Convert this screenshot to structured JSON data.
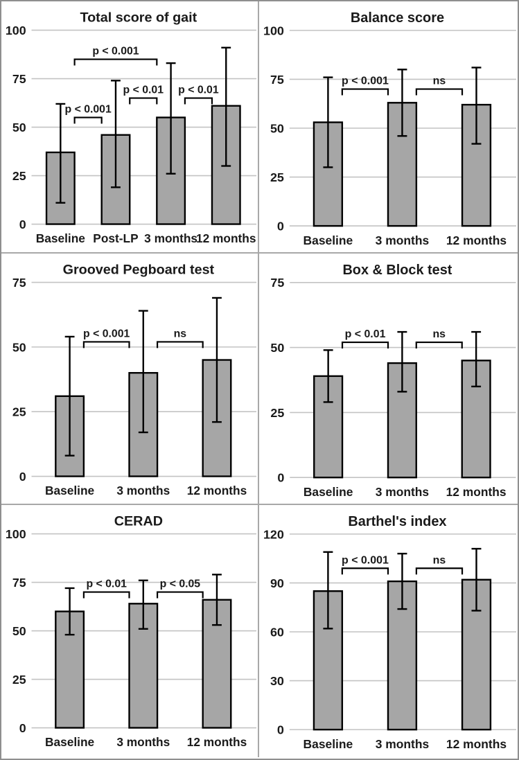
{
  "style": {
    "background": "#ffffff",
    "bar_fill": "#a6a6a6",
    "bar_border": "#000000",
    "grid_color": "#c3c3c3",
    "panel_divider": "#a8a8a8",
    "outer_border": "#8f8f8f",
    "text_color": "#1a1a1a"
  },
  "chart_data": [
    {
      "type": "bar",
      "title": "Total score of gait",
      "categories": [
        "Baseline",
        "Post-LP",
        "3 months",
        "12 months"
      ],
      "values": [
        37,
        46,
        55,
        61
      ],
      "error_low": [
        11,
        19,
        26,
        30
      ],
      "error_high": [
        62,
        74,
        83,
        91
      ],
      "xlabel": "",
      "ylabel": "",
      "ylim": [
        0,
        100
      ],
      "yticks": [
        0,
        25,
        50,
        75,
        100
      ],
      "grid": true,
      "legend": "none",
      "significance": [
        {
          "pair": [
            0,
            1
          ],
          "y": 55,
          "label": "p < 0.001"
        },
        {
          "pair": [
            1,
            2
          ],
          "y": 65,
          "label": "p < 0.01"
        },
        {
          "pair": [
            2,
            3
          ],
          "y": 65,
          "label": "p < 0.01"
        },
        {
          "pair": [
            0,
            2
          ],
          "y": 85,
          "label": "p < 0.001"
        }
      ]
    },
    {
      "type": "bar",
      "title": "Balance score",
      "categories": [
        "Baseline",
        "3 months",
        "12 months"
      ],
      "values": [
        53,
        63,
        62
      ],
      "error_low": [
        30,
        46,
        42
      ],
      "error_high": [
        76,
        80,
        81
      ],
      "xlabel": "",
      "ylabel": "",
      "ylim": [
        0,
        100
      ],
      "yticks": [
        0,
        25,
        50,
        75,
        100
      ],
      "grid": true,
      "legend": "none",
      "significance": [
        {
          "pair": [
            0,
            1
          ],
          "y": 70,
          "label": "p < 0.001"
        },
        {
          "pair": [
            1,
            2
          ],
          "y": 70,
          "label": "ns"
        }
      ]
    },
    {
      "type": "bar",
      "title": "Grooved Pegboard test",
      "categories": [
        "Baseline",
        "3 months",
        "12 months"
      ],
      "values": [
        31,
        40,
        45
      ],
      "error_low": [
        8,
        17,
        21
      ],
      "error_high": [
        54,
        64,
        69
      ],
      "xlabel": "",
      "ylabel": "",
      "ylim": [
        0,
        75
      ],
      "yticks": [
        0,
        25,
        50,
        75
      ],
      "grid": true,
      "legend": "none",
      "significance": [
        {
          "pair": [
            0,
            1
          ],
          "y": 52,
          "label": "p < 0.001"
        },
        {
          "pair": [
            1,
            2
          ],
          "y": 52,
          "label": "ns"
        }
      ]
    },
    {
      "type": "bar",
      "title": "Box & Block test",
      "categories": [
        "Baseline",
        "3 months",
        "12 months"
      ],
      "values": [
        39,
        44,
        45
      ],
      "error_low": [
        29,
        33,
        35
      ],
      "error_high": [
        49,
        56,
        56
      ],
      "xlabel": "",
      "ylabel": "",
      "ylim": [
        0,
        75
      ],
      "yticks": [
        0,
        25,
        50,
        75
      ],
      "grid": true,
      "legend": "none",
      "significance": [
        {
          "pair": [
            0,
            1
          ],
          "y": 52,
          "label": "p < 0.01"
        },
        {
          "pair": [
            1,
            2
          ],
          "y": 52,
          "label": "ns"
        }
      ]
    },
    {
      "type": "bar",
      "title": "CERAD",
      "categories": [
        "Baseline",
        "3 months",
        "12 months"
      ],
      "values": [
        60,
        64,
        66
      ],
      "error_low": [
        48,
        51,
        53
      ],
      "error_high": [
        72,
        76,
        79
      ],
      "xlabel": "",
      "ylabel": "",
      "ylim": [
        0,
        100
      ],
      "yticks": [
        0,
        25,
        50,
        75,
        100
      ],
      "grid": true,
      "legend": "none",
      "significance": [
        {
          "pair": [
            0,
            1
          ],
          "y": 70,
          "label": "p < 0.01"
        },
        {
          "pair": [
            1,
            2
          ],
          "y": 70,
          "label": "p < 0.05"
        }
      ]
    },
    {
      "type": "bar",
      "title": "Barthel's index",
      "categories": [
        "Baseline",
        "3 months",
        "12 months"
      ],
      "values": [
        85,
        91,
        92
      ],
      "error_low": [
        62,
        74,
        73
      ],
      "error_high": [
        109,
        108,
        111
      ],
      "xlabel": "",
      "ylabel": "",
      "ylim": [
        0,
        120
      ],
      "yticks": [
        0,
        30,
        60,
        90,
        120
      ],
      "grid": true,
      "legend": "none",
      "significance": [
        {
          "pair": [
            0,
            1
          ],
          "y": 99,
          "label": "p < 0.001"
        },
        {
          "pair": [
            1,
            2
          ],
          "y": 99,
          "label": "ns"
        }
      ]
    }
  ]
}
